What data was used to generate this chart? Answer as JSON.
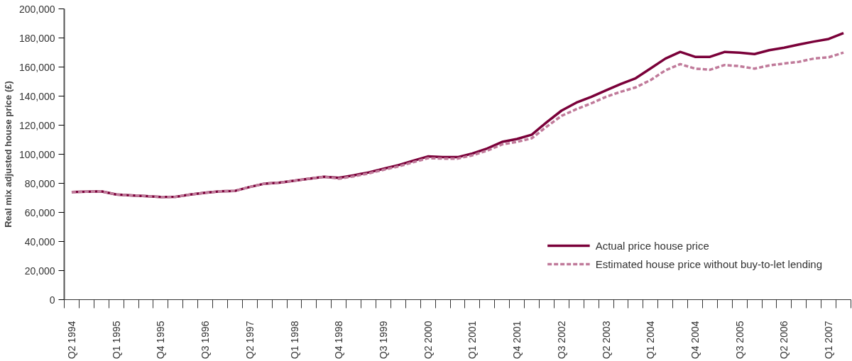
{
  "chart_data": {
    "type": "line",
    "ylabel": "Real mix adjusted house price (£)",
    "categories": [
      "Q2 1994",
      null,
      null,
      "Q1 1995",
      null,
      null,
      "Q4 1995",
      null,
      null,
      "Q3 1996",
      null,
      null,
      "Q2 1997",
      null,
      null,
      "Q1 1998",
      null,
      null,
      "Q4 1998",
      null,
      null,
      "Q3 1999",
      null,
      null,
      "Q2 2000",
      null,
      null,
      "Q1 2001",
      null,
      null,
      "Q4 2001",
      null,
      null,
      "Q3 2002",
      null,
      null,
      "Q2 2003",
      null,
      null,
      "Q1 2004",
      null,
      null,
      "Q4 2004",
      null,
      null,
      "Q3 2005",
      null,
      null,
      "Q2 2006",
      null,
      null,
      "Q1 2007",
      null
    ],
    "series": [
      {
        "name": "Actual price house price",
        "color": "#7a0039",
        "line_style": "solid",
        "values": [
          74000,
          74300,
          74500,
          72300,
          71700,
          71200,
          70600,
          70700,
          72300,
          73500,
          74500,
          74800,
          77500,
          79800,
          80500,
          81800,
          83200,
          84500,
          83800,
          85500,
          87500,
          90000,
          92500,
          95500,
          98500,
          98000,
          98000,
          100500,
          104000,
          108500,
          110500,
          113500,
          122000,
          130000,
          135500,
          139500,
          144000,
          148400,
          152300,
          159000,
          165800,
          170400,
          167000,
          167000,
          170400,
          169900,
          168900,
          171600,
          173300,
          175500,
          177500,
          179300,
          183400
        ]
      },
      {
        "name": "Estimated house price without buy-to-let lending",
        "color": "#c07a9a",
        "line_style": "dashed",
        "values": [
          74000,
          74300,
          74500,
          72300,
          71700,
          71200,
          70600,
          70700,
          72300,
          73500,
          74500,
          74800,
          77500,
          79800,
          80500,
          81800,
          83200,
          84500,
          83200,
          84800,
          86800,
          89300,
          91600,
          94500,
          97300,
          97000,
          97000,
          99300,
          102500,
          106800,
          108500,
          111000,
          119000,
          126400,
          131000,
          135000,
          139500,
          143000,
          146000,
          151000,
          157700,
          162000,
          158900,
          158100,
          161400,
          160600,
          158900,
          161100,
          162400,
          163600,
          165800,
          166700,
          169900
        ]
      }
    ],
    "ylim": [
      0,
      200000
    ],
    "yticks": [
      {
        "value": 0,
        "label": "0"
      },
      {
        "value": 20000,
        "label": "20,000"
      },
      {
        "value": 40000,
        "label": "40,000"
      },
      {
        "value": 60000,
        "label": "60,000"
      },
      {
        "value": 80000,
        "label": "80,000"
      },
      {
        "value": 100000,
        "label": "100,000"
      },
      {
        "value": 120000,
        "label": "120,000"
      },
      {
        "value": 140000,
        "label": "140,000"
      },
      {
        "value": 160000,
        "label": "160,000"
      },
      {
        "value": 180000,
        "label": "180,000"
      },
      {
        "value": 200000,
        "label": "200,000"
      }
    ],
    "grid": false,
    "legend": "bottom right",
    "marker": "none"
  }
}
